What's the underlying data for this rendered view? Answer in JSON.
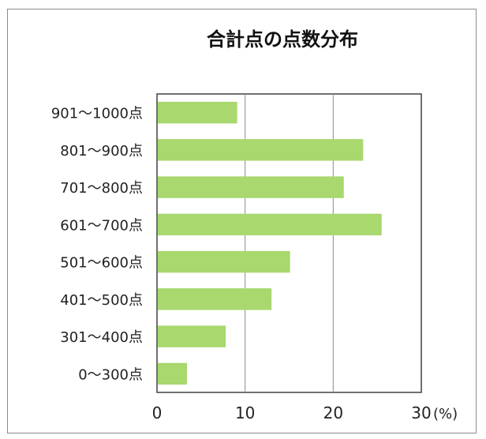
{
  "chart_data": {
    "type": "bar",
    "orientation": "horizontal",
    "title": "合計点の点数分布",
    "categories": [
      "901～1000点",
      "801～900点",
      "701～800点",
      "601～700点",
      "501～600点",
      "401～500点",
      "301～400点",
      "0～300点"
    ],
    "values": [
      9.1,
      23.4,
      21.2,
      25.5,
      15.1,
      13.0,
      7.8,
      3.4
    ],
    "xlim": [
      0,
      30
    ],
    "xticks": [
      "0",
      "10",
      "20",
      "30"
    ],
    "unit_label": "(%)",
    "grid": true,
    "bar_color": "#a8d86e"
  }
}
